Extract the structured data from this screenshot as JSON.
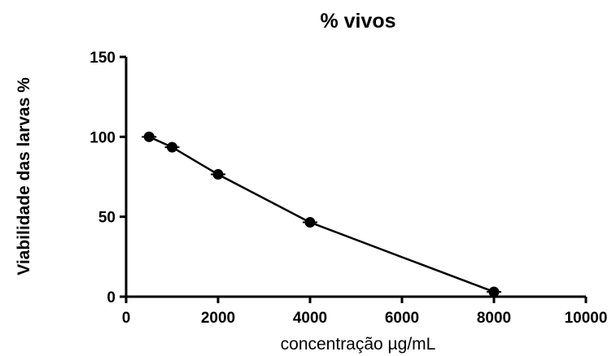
{
  "chart_data": {
    "type": "line",
    "title": "% vivos",
    "xlabel": "concentração µg/mL",
    "ylabel": "Viabilidade das larvas %",
    "xlim": [
      0,
      10000
    ],
    "ylim": [
      0,
      150
    ],
    "xticks": [
      0,
      2000,
      4000,
      6000,
      8000,
      10000
    ],
    "yticks": [
      0,
      50,
      100,
      150
    ],
    "x_tick_labels": [
      "0",
      "2000",
      "4000",
      "6000",
      "8000",
      "10000"
    ],
    "y_tick_labels": [
      "0",
      "50",
      "100",
      "150"
    ],
    "grid": false,
    "legend": false,
    "marker": "circle",
    "color": "#000000",
    "series": [
      {
        "x": [
          500,
          1000,
          2000,
          4000,
          8000
        ],
        "y": [
          100,
          93.5,
          76.5,
          46.5,
          3
        ]
      }
    ]
  }
}
